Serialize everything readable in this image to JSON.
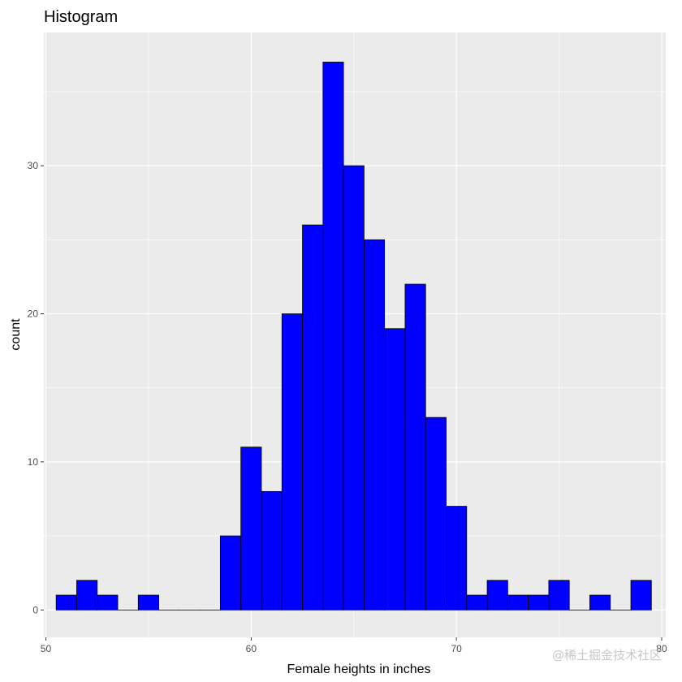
{
  "chart_data": {
    "type": "bar",
    "title": "Histogram",
    "xlabel": "Female heights in inches",
    "ylabel": "count",
    "xlim": [
      49.9,
      80.2
    ],
    "ylim": [
      -1.85,
      39.0
    ],
    "x_ticks": [
      50,
      60,
      70,
      80
    ],
    "x_tick_labels": [
      "50",
      "60",
      "70",
      "80"
    ],
    "y_ticks": [
      0,
      10,
      20,
      30
    ],
    "y_tick_labels": [
      "0",
      "10",
      "20",
      "30"
    ],
    "bin_width": 1.0,
    "bins_start": [
      50.5,
      51.5,
      52.5,
      53.5,
      54.5,
      55.5,
      56.5,
      57.5,
      58.5,
      59.5,
      60.5,
      61.5,
      62.5,
      63.5,
      64.5,
      65.5,
      66.5,
      67.5,
      68.5,
      69.5,
      70.5,
      71.5,
      72.5,
      73.5,
      74.5,
      75.5,
      76.5,
      77.5,
      78.5
    ],
    "values": [
      1,
      2,
      1,
      0,
      1,
      0,
      0,
      0,
      5,
      11,
      8,
      20,
      26,
      37,
      30,
      25,
      19,
      22,
      13,
      7,
      1,
      2,
      1,
      1,
      2,
      0,
      1,
      0,
      2
    ],
    "bar_fill": "#0000ff",
    "bar_outline": "#000000",
    "panel_background": "#ebebeb",
    "grid": true,
    "grid_color": "#ffffff"
  },
  "watermark": "@稀土掘金技术社区"
}
